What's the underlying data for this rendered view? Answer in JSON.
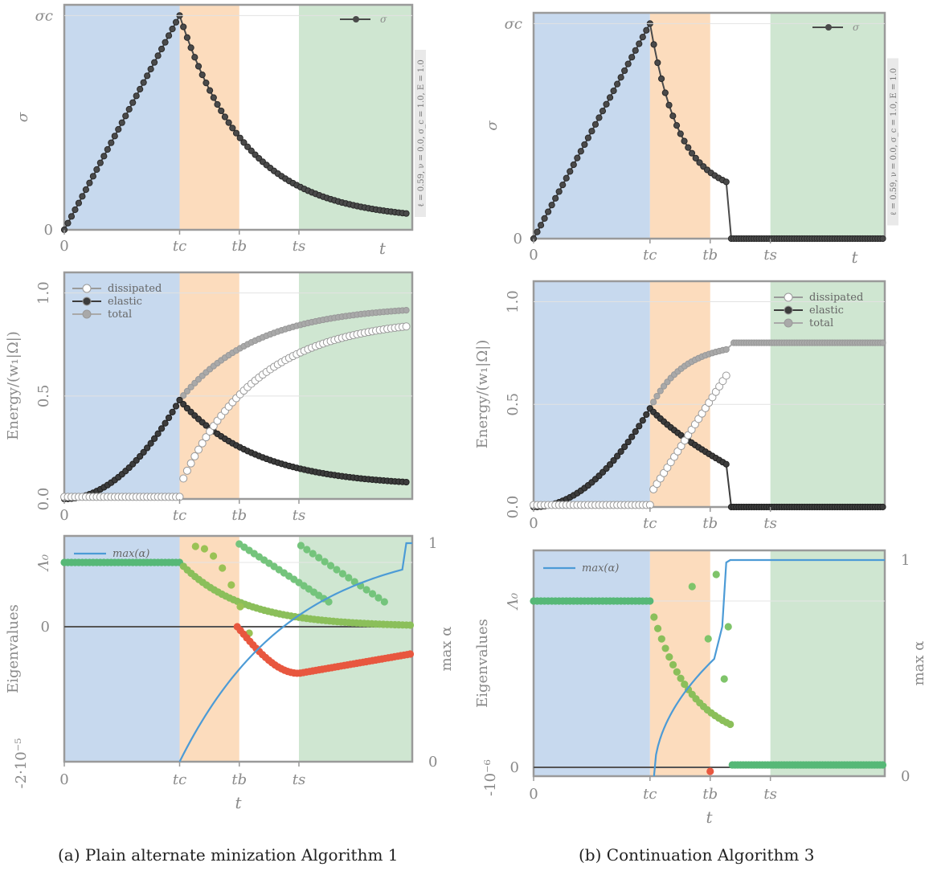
{
  "captions": {
    "a": "(a) Plain alternate minization Algorithm 1",
    "b": "(b) Continuation Algorithm 3"
  },
  "colors": {
    "band_blue": "#c7d9ee",
    "band_orange": "#fcdcbd",
    "band_green": "#cfe6d1",
    "frame": "#9a9a9a",
    "stress": "#4a4a4a",
    "elastic": "#3c3c3c",
    "total": "#a9a9a9",
    "max_alpha": "#4c9bd6",
    "eig_stable": "#56b877",
    "eig_negative": "#e8573f"
  },
  "chart_data": [
    {
      "id": "a-stress",
      "type": "line",
      "ylabel": "σ",
      "xlabel": "t",
      "y_ticks": [
        "0",
        "σ_c"
      ],
      "x_ticks": [
        "0",
        "t_c",
        "t_b",
        "t_s"
      ],
      "legend": [
        "σ"
      ],
      "legend_position": "top-right",
      "side_label": "ℓ = 0.59, ν = 0.0, σ_c = 1.0, E = 1.0",
      "xlim": [
        0,
        1.75
      ],
      "ylim": [
        0,
        1.05
      ],
      "bands": {
        "t_c": 0.58,
        "t_b": 0.88,
        "t_s": 1.18
      },
      "peak": 1.0,
      "decay_end": 0.045
    },
    {
      "id": "a-energy",
      "type": "line",
      "ylabel": "Energy/(w_1|Ω|)",
      "xlabel": "t",
      "y_ticks": [
        "0.0",
        "0.5",
        "1.0"
      ],
      "x_ticks": [
        "0",
        "t_c",
        "t_b",
        "t_s"
      ],
      "legend": [
        "dissipated",
        "elastic",
        "total"
      ],
      "legend_position": "top-left",
      "xlim": [
        0,
        1.75
      ],
      "ylim": [
        0,
        1.1
      ],
      "series": [
        {
          "name": "dissipated",
          "start": 0.06,
          "end": 0.88
        },
        {
          "name": "elastic",
          "peak": 0.48,
          "end": 0.06
        },
        {
          "name": "total",
          "peak": 0.48,
          "end": 0.94
        }
      ]
    },
    {
      "id": "a-eigen",
      "type": "scatter",
      "ylabel": "Eigenvalues",
      "y2label": "max α",
      "xlabel": "t",
      "y_ticks": [
        "-2·10⁻⁵",
        "0",
        "Λ₀"
      ],
      "y2_ticks": [
        "0",
        "1"
      ],
      "x_ticks": [
        "0",
        "t_c",
        "t_b",
        "t_s"
      ],
      "legend": [
        "max(α)"
      ],
      "legend_position": "top-left",
      "xlim": [
        0,
        1.75
      ]
    },
    {
      "id": "b-stress",
      "type": "line",
      "ylabel": "σ",
      "xlabel": "t",
      "y_ticks": [
        "0",
        "σ_c"
      ],
      "x_ticks": [
        "0",
        "t_c",
        "t_b",
        "t_s"
      ],
      "legend": [
        "σ"
      ],
      "legend_position": "top-right",
      "side_label": "ℓ = 0.59, ν = 0.0, σ_c = 1.0, E = 1.0",
      "xlim": [
        0,
        1.75
      ],
      "ylim": [
        0,
        1.05
      ],
      "bands": {
        "t_c": 0.58,
        "t_b": 0.88,
        "t_s": 1.18
      },
      "peak": 1.0,
      "jump_at": 0.96,
      "jump_from": 0.23
    },
    {
      "id": "b-energy",
      "type": "line",
      "ylabel": "Energy/(w_1|Ω|)",
      "xlabel": "t",
      "y_ticks": [
        "0.0",
        "0.5",
        "1.0"
      ],
      "x_ticks": [
        "0",
        "t_c",
        "t_b",
        "t_s"
      ],
      "legend": [
        "dissipated",
        "elastic",
        "total"
      ],
      "legend_position": "top-right",
      "xlim": [
        0,
        1.75
      ],
      "ylim": [
        0,
        1.1
      ],
      "series": [
        {
          "name": "dissipated",
          "start": 0.06,
          "end": 0.64
        },
        {
          "name": "elastic",
          "peak": 0.48,
          "end": 0.2
        },
        {
          "name": "total",
          "peak": 0.48,
          "end": 0.8
        }
      ]
    },
    {
      "id": "b-eigen",
      "type": "scatter",
      "ylabel": "Eigenvalues",
      "y2label": "max α",
      "xlabel": "t",
      "y_ticks": [
        "-10⁻⁶",
        "0",
        "Λ₀"
      ],
      "y2_ticks": [
        "0",
        "1"
      ],
      "x_ticks": [
        "0",
        "t_c",
        "t_b",
        "t_s"
      ],
      "legend": [
        "max(α)"
      ],
      "legend_position": "top-left",
      "xlim": [
        0,
        1.75
      ]
    }
  ]
}
